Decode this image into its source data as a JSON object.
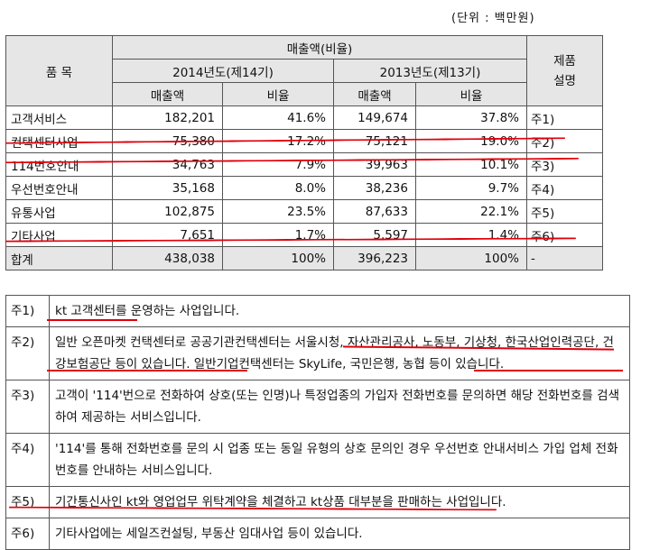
{
  "unit_label": "(단위 : 백만원)",
  "header": {
    "item": "품  목",
    "revenue_ratio": "매출액(비율)",
    "year2014": "2014년도(제14기)",
    "year2013": "2013년도(제13기)",
    "revenue": "매출액",
    "ratio": "비율",
    "product_desc": "제품설명"
  },
  "rows": [
    {
      "name": "고객서비스",
      "rev14": "182,201",
      "ratio14": "41.6%",
      "rev13": "149,674",
      "ratio13": "37.8%",
      "note": "주1)"
    },
    {
      "name": "컨택센터사업",
      "rev14": "75,380",
      "ratio14": "17.2%",
      "rev13": "75,121",
      "ratio13": "19.0%",
      "note": "주2)"
    },
    {
      "name": "114번호안내",
      "rev14": "34,763",
      "ratio14": "7.9%",
      "rev13": "39,963",
      "ratio13": "10.1%",
      "note": "주3)"
    },
    {
      "name": "우선번호안내",
      "rev14": "35,168",
      "ratio14": "8.0%",
      "rev13": "38,236",
      "ratio13": "9.7%",
      "note": "주4)"
    },
    {
      "name": "유통사업",
      "rev14": "102,875",
      "ratio14": "23.5%",
      "rev13": "87,633",
      "ratio13": "22.1%",
      "note": "주5)"
    },
    {
      "name": "기타사업",
      "rev14": "7,651",
      "ratio14": "1.7%",
      "rev13": "5,597",
      "ratio13": "1.4%",
      "note": "주6)"
    }
  ],
  "total": {
    "name": "합계",
    "rev14": "438,038",
    "ratio14": "100%",
    "rev13": "396,223",
    "ratio13": "100%",
    "note": "-"
  },
  "notes": [
    {
      "label": "주1)",
      "text": "kt 고객센터를 운영하는 사업입니다."
    },
    {
      "label": "주2)",
      "text": "일반 오픈마켓 컨택센터로 공공기관컨택센터는 서울시청, 자산관리공사, 노동부, 기상청, 한국산업인력공단, 건강보험공단 등이 있습니다. 일반기업컨택센터는 SkyLife, 국민은행, 농협 등이 있습니다."
    },
    {
      "label": "주3)",
      "text": "고객이 '114'번으로 전화하여 상호(또는 인명)나 특정업종의 가입자 전화번호를 문의하면 해당 전화번호를 검색하여 제공하는 서비스입니다."
    },
    {
      "label": "주4)",
      "text": "'114'를 통해 전화번호를 문의 시 업종 또는 동일 유형의 상호 문의인 경우 우선번호 안내서비스 가입 업체 전화번호를 안내하는 서비스입니다."
    },
    {
      "label": "주5)",
      "text": "기간통신사인 kt와 영업업무 위탁계약을 체결하고 kt상품 대부분을 판매하는 사업입니다."
    },
    {
      "label": "주6)",
      "text": "기타사업에는 세일즈컨설팅, 부동산 임대사업 등이 있습니다."
    }
  ]
}
